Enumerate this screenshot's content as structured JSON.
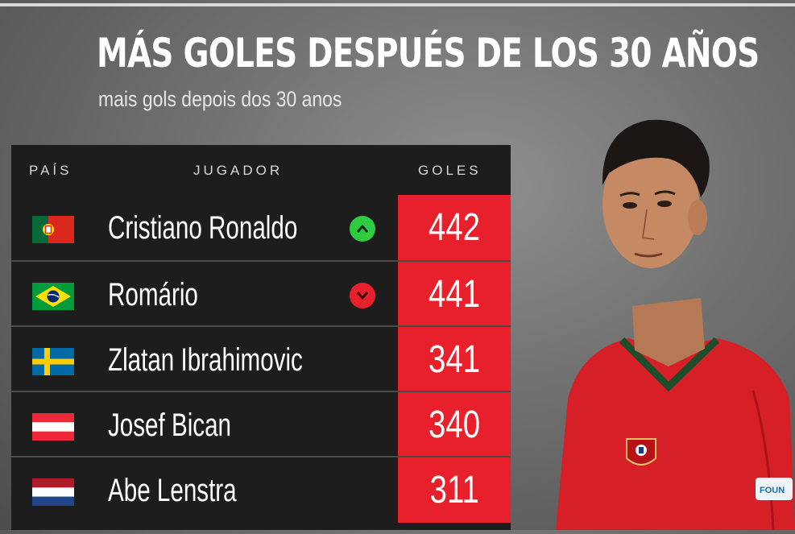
{
  "title": "MÁS GOLES DESPUÉS DE LOS 30 AÑOS",
  "subtitle": "mais gols depois dos 30 anos",
  "headers": {
    "country": "PAÍS",
    "player": "JUGADOR",
    "goals": "GOLES"
  },
  "rows": [
    {
      "name": "Cristiano Ronaldo",
      "goals": "442",
      "country_flag": "portugal-flag",
      "trend": "up"
    },
    {
      "name": "Romário",
      "goals": "441",
      "country_flag": "brazil-flag",
      "trend": "down"
    },
    {
      "name": "Zlatan Ibrahimovic",
      "goals": "341",
      "country_flag": "sweden-flag"
    },
    {
      "name": "Josef Bican",
      "goals": "340",
      "country_flag": "austria-flag"
    },
    {
      "name": "Abe Lenstra",
      "goals": "311",
      "country_flag": "netherlands-flag"
    }
  ],
  "colors": {
    "accent": "#e8202b",
    "up": "#2ecc40",
    "down": "#e8202b",
    "table_bg": "#1d1d1d"
  }
}
